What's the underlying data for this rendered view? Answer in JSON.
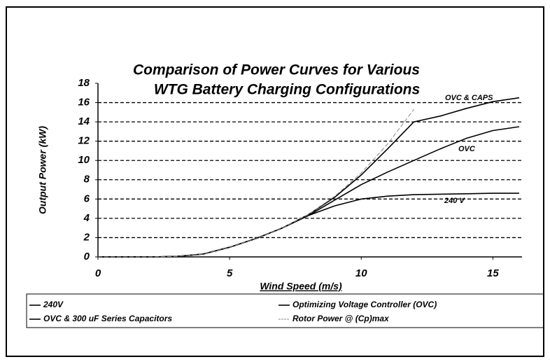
{
  "chart_data": {
    "type": "line",
    "title": [
      "Comparison of Power Curves for Various",
      "WTG Battery Charging Configurations"
    ],
    "x_label": "Wind Speed (m/s)",
    "y_label": "Output Power (kW)",
    "x": [
      0,
      1,
      2,
      3,
      4,
      5,
      6,
      7,
      8,
      9,
      10,
      11,
      12,
      13,
      14,
      15,
      16
    ],
    "series": [
      {
        "name": "240V",
        "color": "#000000",
        "dashed": false,
        "values": [
          0,
          0,
          0,
          0.05,
          0.3,
          1.0,
          1.9,
          3.0,
          4.3,
          5.3,
          6.0,
          6.3,
          6.45,
          6.5,
          6.55,
          6.6,
          6.6
        ]
      },
      {
        "name": "Optimizing Voltage Controller (OVC)",
        "color": "#000000",
        "dashed": false,
        "values": [
          0,
          0,
          0,
          0.05,
          0.3,
          1.0,
          1.9,
          3.0,
          4.3,
          5.9,
          7.5,
          8.8,
          10.0,
          11.2,
          12.3,
          13.1,
          13.5
        ]
      },
      {
        "name": "OVC & 300 uF Series Capacitors",
        "color": "#000000",
        "dashed": false,
        "values": [
          0,
          0,
          0,
          0.05,
          0.3,
          1.0,
          1.9,
          3.0,
          4.4,
          6.2,
          8.5,
          11.2,
          14.0,
          14.6,
          15.4,
          16.1,
          16.5
        ]
      },
      {
        "name": "Rotor Power @ (Cp)max",
        "color": "#888888",
        "dashed": true,
        "values": [
          0,
          0,
          0,
          0.05,
          0.3,
          1.0,
          1.9,
          3.0,
          4.4,
          6.3,
          8.7,
          11.7,
          15.3,
          null,
          null,
          null,
          null
        ]
      }
    ],
    "annotations": [
      "OVC & CAPS",
      "OVC",
      "240 V"
    ],
    "xlim": [
      0,
      16
    ],
    "xticks": [
      0,
      5,
      10,
      15
    ],
    "ylim": [
      0,
      18
    ],
    "yticks": [
      0,
      2,
      4,
      6,
      8,
      10,
      12,
      14,
      16,
      18
    ],
    "grid": true,
    "legend": "bottom"
  }
}
